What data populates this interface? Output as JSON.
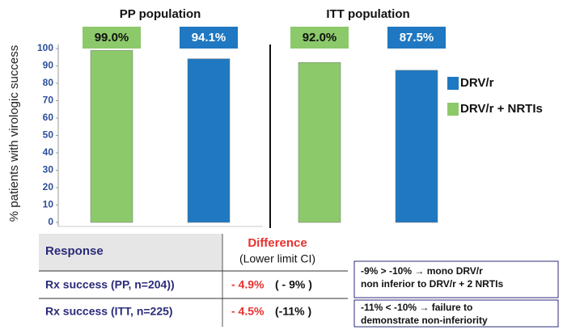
{
  "chart_data": {
    "type": "bar",
    "y_label": "% patients with virologic success",
    "categories": [
      "PP population",
      "ITT population"
    ],
    "series": [
      {
        "name": "DRV/r + NRTIs",
        "color": "#8cc96a",
        "values": [
          99.0,
          92.0
        ],
        "value_labels": [
          "99.0%",
          "92.0%"
        ]
      },
      {
        "name": "DRV/r",
        "color": "#1f78c1",
        "values": [
          94.1,
          87.5
        ],
        "value_labels": [
          "94.1%",
          "87.5%"
        ]
      }
    ],
    "ylim": [
      0,
      100
    ],
    "yticks": [
      0,
      10,
      20,
      30,
      40,
      50,
      60,
      70,
      80,
      90,
      100
    ]
  },
  "table": {
    "header": [
      "Response",
      "Difference",
      "(Lower limit CI)"
    ],
    "rows": [
      [
        "Rx success (PP, n=204))",
        "- 4.9%",
        "( - 9% )"
      ],
      [
        "Rx success (ITT, n=225)",
        "- 4.5%",
        "(-11% )"
      ]
    ]
  },
  "notes": [
    [
      "-9% > -10% → mono DRV/r",
      "non inferior to DRV/r + 2 NRTIs"
    ],
    [
      "-11% < -10% → failure to",
      "demonstrate non-inferiority"
    ]
  ]
}
